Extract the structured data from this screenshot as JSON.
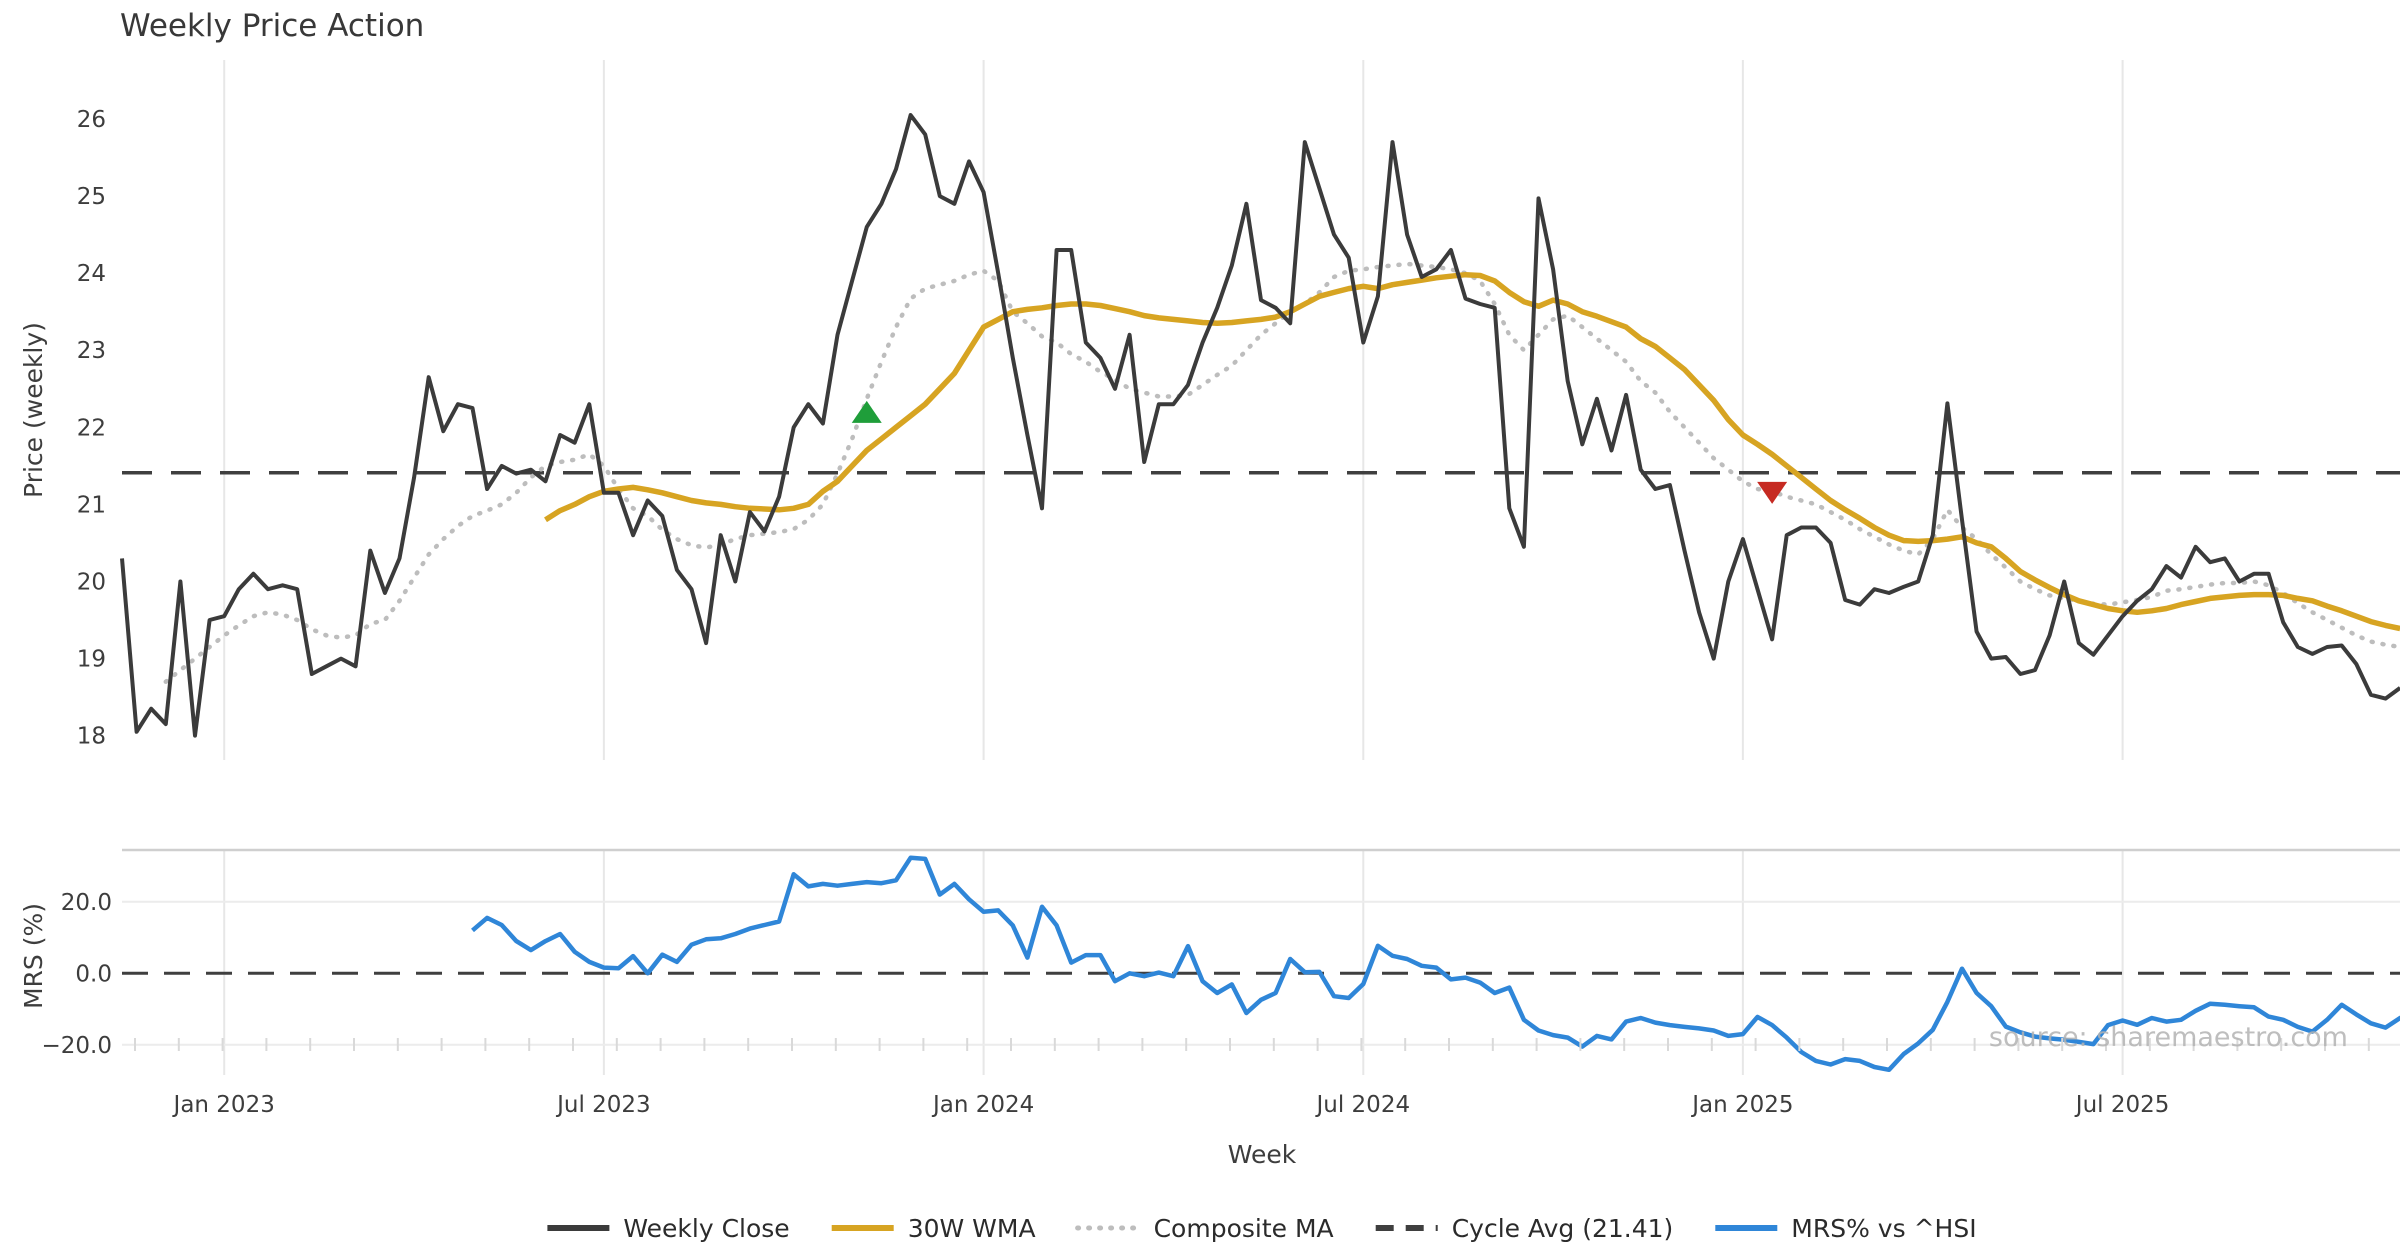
{
  "title": "Weekly Price Action",
  "watermark": "source: sharemaestro.com",
  "colors": {
    "weekly_close": "#3b3b3b",
    "wma30": "#d7a422",
    "composite": "#bdbdbd",
    "cycle_avg": "#3f3f3f",
    "mrs": "#2f86d8",
    "buy_marker": "#1f9e3a",
    "sell_marker": "#c62a22",
    "gridline": "#e7e7e7",
    "panel_border": "#cfcfcf",
    "minor_tick": "#d9d9d9"
  },
  "legend": [
    {
      "key": "weekly_close",
      "label": "Weekly Close",
      "style": "solid"
    },
    {
      "key": "wma30",
      "label": "30W WMA",
      "style": "solid"
    },
    {
      "key": "composite",
      "label": "Composite MA",
      "style": "dotted"
    },
    {
      "key": "cycle_avg",
      "label": "Cycle Avg (21.41)",
      "style": "dashed"
    },
    {
      "key": "mrs",
      "label": "MRS% vs ^HSI",
      "style": "solid"
    }
  ],
  "price_panel": {
    "ylabel": "Price (weekly)",
    "yticks": [
      18,
      19,
      20,
      21,
      22,
      23,
      24,
      25,
      26
    ]
  },
  "mrs_panel": {
    "ylabel": "MRS (%)",
    "yticks": [
      "20.0",
      "0.0",
      "−20.0"
    ],
    "ytick_values": [
      20,
      0,
      -20
    ]
  },
  "xlabel": "Week",
  "chart_data": {
    "type": "line",
    "x_unit": "week_index",
    "x_ticks": [
      {
        "index": 7,
        "label": "Jan 2023"
      },
      {
        "index": 33,
        "label": "Jul 2023"
      },
      {
        "index": 59,
        "label": "Jan 2024"
      },
      {
        "index": 85,
        "label": "Jul 2024"
      },
      {
        "index": 111,
        "label": "Jan 2025"
      },
      {
        "index": 137,
        "label": "Jul 2025"
      }
    ],
    "price_ylim": [
      17.9,
      26.8
    ],
    "mrs_ylim": [
      -34,
      34
    ],
    "cycle_avg": 21.41,
    "signals": [
      {
        "type": "buy",
        "week": 51,
        "price": 22.2
      },
      {
        "type": "sell",
        "week": 113,
        "price": 21.15
      }
    ],
    "series": [
      {
        "name": "Weekly Close",
        "key": "weekly_close",
        "panel": "price",
        "start": 0,
        "values": [
          20.3,
          18.05,
          18.35,
          18.15,
          20.0,
          18.0,
          19.5,
          19.55,
          19.9,
          20.1,
          19.9,
          19.95,
          19.9,
          18.8,
          18.9,
          19.0,
          18.9,
          20.4,
          19.85,
          20.3,
          21.35,
          22.65,
          21.95,
          22.3,
          22.25,
          21.2,
          21.5,
          21.4,
          21.45,
          21.3,
          21.9,
          21.8,
          22.3,
          21.15,
          21.15,
          20.6,
          21.05,
          20.85,
          20.15,
          19.9,
          19.2,
          20.6,
          20.0,
          20.9,
          20.65,
          21.1,
          22.0,
          22.3,
          22.05,
          23.2,
          23.9,
          24.6,
          24.9,
          25.35,
          26.05,
          25.8,
          25.0,
          24.9,
          25.45,
          25.05,
          24.0,
          22.9,
          21.9,
          20.95,
          24.3,
          24.3,
          23.1,
          22.9,
          22.5,
          23.2,
          21.55,
          22.3,
          22.3,
          22.55,
          23.1,
          23.55,
          24.1,
          24.9,
          23.65,
          23.55,
          23.35,
          25.7,
          25.1,
          24.5,
          24.2,
          23.1,
          23.7,
          25.7,
          24.5,
          23.95,
          24.05,
          24.3,
          23.67,
          23.6,
          23.55,
          20.95,
          20.45,
          24.97,
          24.05,
          22.6,
          21.78,
          22.37,
          21.7,
          22.42,
          21.45,
          21.2,
          21.25,
          20.4,
          19.6,
          19.0,
          20.0,
          20.55,
          19.9,
          19.25,
          20.6,
          20.7,
          20.7,
          20.5,
          19.76,
          19.7,
          19.9,
          19.85,
          19.93,
          20.0,
          20.6,
          22.31,
          20.8,
          19.35,
          19.0,
          19.02,
          18.8,
          18.85,
          19.3,
          20.0,
          19.2,
          19.05,
          19.3,
          19.55,
          19.75,
          19.9,
          20.2,
          20.05,
          20.45,
          20.25,
          20.3,
          20.0,
          20.1,
          20.1,
          19.47,
          19.15,
          19.06,
          19.15,
          19.17,
          18.93,
          18.53,
          18.48,
          18.62
        ]
      },
      {
        "name": "30W WMA",
        "key": "wma30",
        "panel": "price",
        "start": 29,
        "values": [
          20.8,
          20.92,
          21.0,
          21.1,
          21.17,
          21.2,
          21.22,
          21.19,
          21.15,
          21.1,
          21.05,
          21.02,
          21.0,
          20.97,
          20.95,
          20.94,
          20.93,
          20.95,
          21.0,
          21.17,
          21.3,
          21.5,
          21.7,
          21.85,
          22.0,
          22.15,
          22.3,
          22.5,
          22.7,
          23.0,
          23.3,
          23.4,
          23.5,
          23.53,
          23.55,
          23.58,
          23.6,
          23.6,
          23.58,
          23.54,
          23.5,
          23.45,
          23.42,
          23.4,
          23.38,
          23.36,
          23.35,
          23.36,
          23.38,
          23.4,
          23.43,
          23.5,
          23.6,
          23.7,
          23.75,
          23.8,
          23.83,
          23.8,
          23.85,
          23.88,
          23.91,
          23.94,
          23.96,
          23.98,
          23.97,
          23.9,
          23.75,
          23.63,
          23.57,
          23.65,
          23.6,
          23.5,
          23.44,
          23.37,
          23.3,
          23.15,
          23.05,
          22.9,
          22.75,
          22.55,
          22.35,
          22.1,
          21.9,
          21.78,
          21.65,
          21.5,
          21.35,
          21.2,
          21.05,
          20.93,
          20.82,
          20.7,
          20.6,
          20.53,
          20.52,
          20.53,
          20.55,
          20.58,
          20.5,
          20.45,
          20.3,
          20.13,
          20.02,
          19.92,
          19.83,
          19.75,
          19.7,
          19.65,
          19.62,
          19.6,
          19.62,
          19.65,
          19.7,
          19.74,
          19.78,
          19.8,
          19.82,
          19.83,
          19.83,
          19.82,
          19.78,
          19.75,
          19.68,
          19.62,
          19.55,
          19.48,
          19.43,
          19.39
        ]
      },
      {
        "name": "Composite MA",
        "key": "composite",
        "panel": "price",
        "start": 3,
        "values": [
          18.7,
          18.85,
          19.0,
          19.15,
          19.3,
          19.43,
          19.55,
          19.6,
          19.57,
          19.5,
          19.38,
          19.3,
          19.27,
          19.3,
          19.45,
          19.5,
          19.75,
          20.05,
          20.35,
          20.55,
          20.72,
          20.85,
          20.92,
          21.0,
          21.15,
          21.35,
          21.5,
          21.55,
          21.58,
          21.65,
          21.5,
          21.2,
          20.95,
          20.85,
          20.67,
          20.55,
          20.47,
          20.44,
          20.48,
          20.55,
          20.6,
          20.62,
          20.64,
          20.68,
          20.8,
          21.0,
          21.4,
          21.85,
          22.37,
          22.85,
          23.3,
          23.67,
          23.8,
          23.85,
          23.9,
          23.98,
          24.03,
          23.9,
          23.5,
          23.35,
          23.18,
          23.1,
          22.95,
          22.85,
          22.72,
          22.62,
          22.5,
          22.45,
          22.4,
          22.4,
          22.42,
          22.55,
          22.68,
          22.8,
          23.0,
          23.2,
          23.35,
          23.5,
          23.6,
          23.75,
          23.95,
          24.03,
          24.05,
          24.08,
          24.1,
          24.12,
          24.1,
          24.08,
          24.05,
          24.0,
          23.9,
          23.6,
          23.2,
          23.0,
          23.2,
          23.4,
          23.45,
          23.3,
          23.15,
          23.0,
          22.85,
          22.6,
          22.45,
          22.2,
          22.0,
          21.8,
          21.6,
          21.45,
          21.3,
          21.2,
          21.17,
          21.1,
          21.05,
          21.0,
          20.9,
          20.8,
          20.68,
          20.58,
          20.48,
          20.4,
          20.35,
          20.55,
          20.93,
          20.7,
          20.55,
          20.35,
          20.18,
          20.0,
          19.9,
          19.82,
          19.78,
          19.75,
          19.71,
          19.7,
          19.73,
          19.76,
          19.8,
          19.88,
          19.9,
          19.93,
          19.96,
          19.98,
          19.98,
          20.0,
          19.95,
          19.85,
          19.72,
          19.6,
          19.5,
          19.4,
          19.3,
          19.22,
          19.18,
          19.15
        ]
      },
      {
        "name": "MRS% vs ^HSI",
        "key": "mrs",
        "panel": "mrs",
        "start": 24,
        "values": [
          12,
          15.5,
          13.5,
          9,
          6.5,
          9,
          11,
          6,
          3.2,
          1.6,
          1.4,
          4.8,
          0,
          5.2,
          3.2,
          8,
          9.5,
          9.8,
          11,
          12.5,
          13.5,
          14.5,
          27.7,
          24.3,
          25,
          24.5,
          25,
          25.5,
          25.2,
          26,
          32.3,
          32,
          22,
          25,
          20.7,
          17.2,
          17.6,
          13.4,
          4.4,
          18.6,
          13.4,
          3,
          5.1,
          5.1,
          -2.2,
          0,
          -0.8,
          0.2,
          -0.8,
          7.6,
          -2.2,
          -5.5,
          -3.1,
          -11.1,
          -7.4,
          -5.5,
          4,
          0.3,
          0.4,
          -6.4,
          -6.9,
          -3,
          7.7,
          4.9,
          4,
          2.1,
          1.6,
          -1.7,
          -1.2,
          -2.6,
          -5.5,
          -4,
          -13,
          -16,
          -17.3,
          -18,
          -20.5,
          -17.5,
          -18.5,
          -13.5,
          -12.5,
          -13.8,
          -14.5,
          -15,
          -15.4,
          -16,
          -17.5,
          -17,
          -12.2,
          -14.5,
          -18,
          -22,
          -24.5,
          -25.5,
          -24,
          -24.5,
          -26.2,
          -27,
          -22.6,
          -19.6,
          -15.8,
          -8,
          1.3,
          -5.5,
          -9.2,
          -14.9,
          -16.5,
          -17.7,
          -18.2,
          -18.6,
          -19.2,
          -19.8,
          -14.5,
          -13.2,
          -14.4,
          -12.5,
          -13.5,
          -13,
          -10.5,
          -8.5,
          -8.8,
          -9.2,
          -9.5,
          -12.1,
          -13,
          -15,
          -16.3,
          -13,
          -8.8,
          -11.5,
          -14,
          -15.2,
          -12.5,
          -11
        ]
      }
    ]
  }
}
